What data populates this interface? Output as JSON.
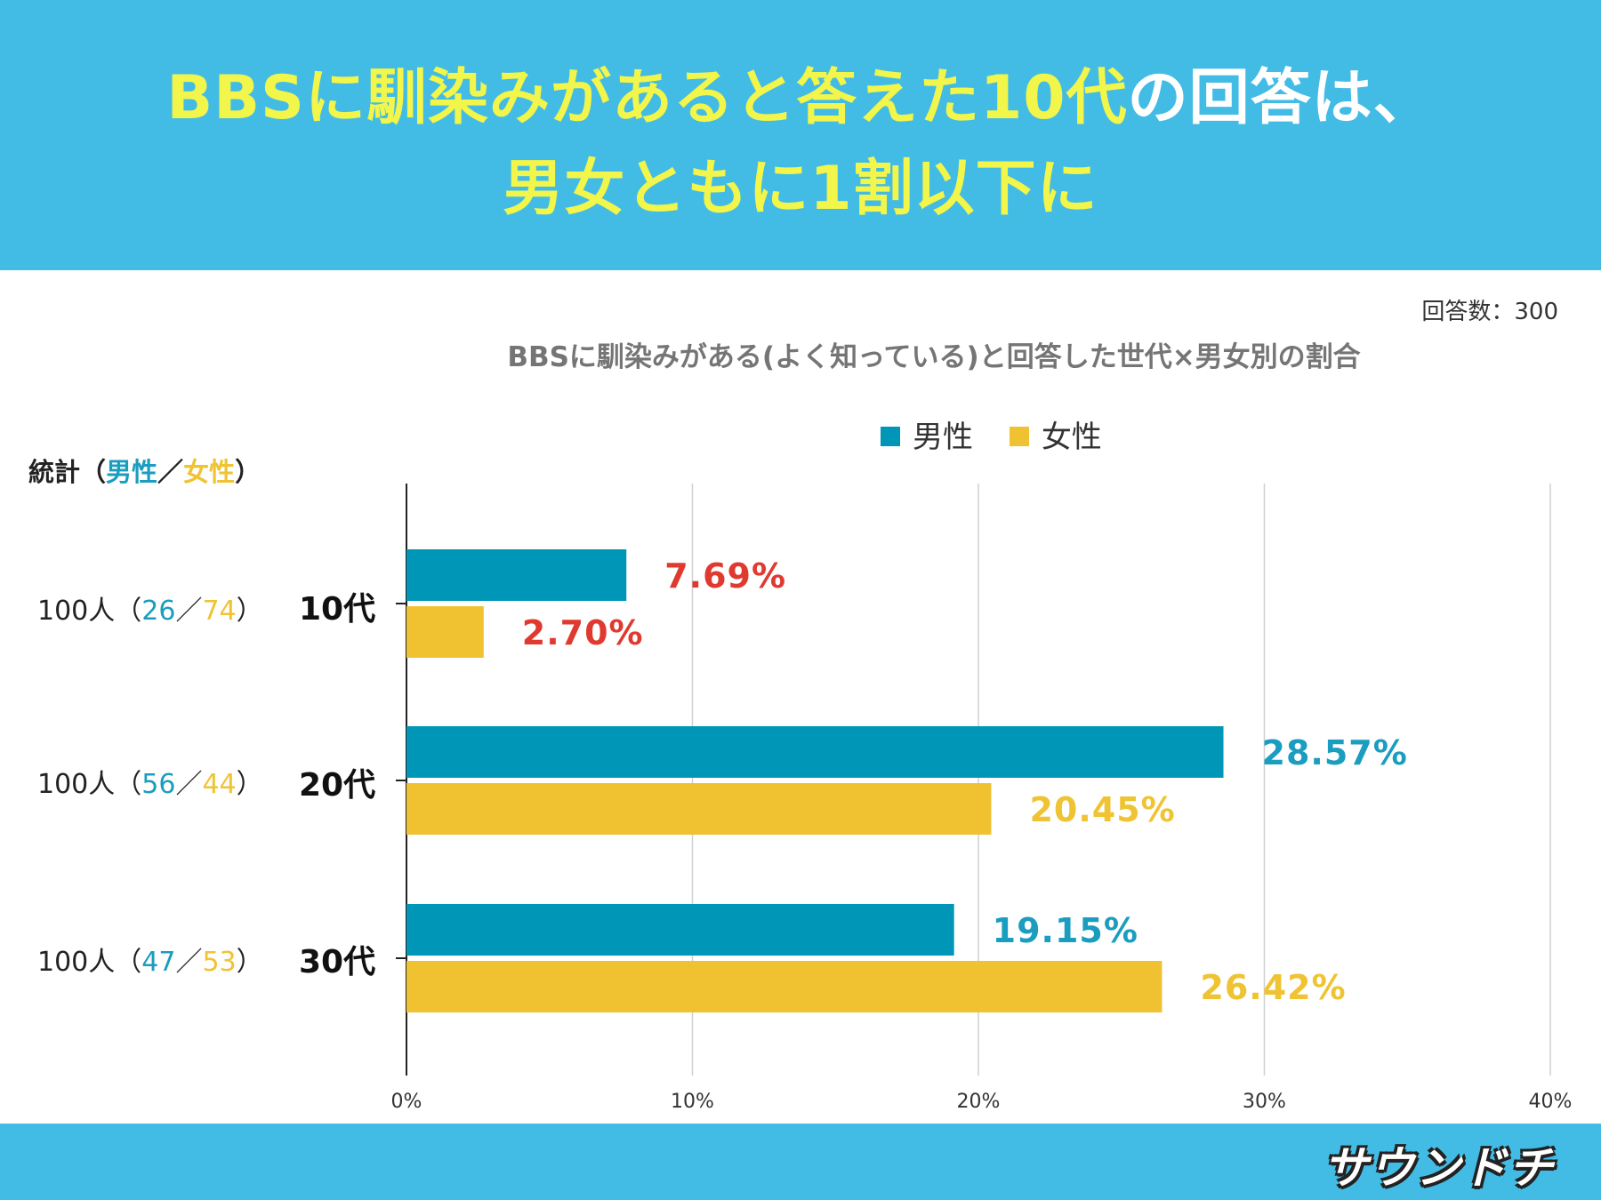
{
  "header": {
    "title_highlight": "BBSに馴染みがあると答えた10代",
    "title_rest": "の回答は、",
    "title_line2": "男女ともに1割以下に"
  },
  "respondents": "回答数：300",
  "stat_header": {
    "prefix": "統計（",
    "male": "男性",
    "sep": "／",
    "female": "女性",
    "suffix": "）"
  },
  "stats": [
    {
      "total": "100人（",
      "male": "26",
      "sep": "／",
      "female": "74",
      "close": "）"
    },
    {
      "total": "100人（",
      "male": "56",
      "sep": "／",
      "female": "44",
      "close": "）"
    },
    {
      "total": "100人（",
      "male": "47",
      "sep": "／",
      "female": "53",
      "close": "）"
    }
  ],
  "colors": {
    "male": "#0096b8",
    "female": "#f0c232",
    "header_bg": "#43bce5",
    "highlight_label": "#e03a30"
  },
  "footer": {
    "logo": "サウンドチ"
  },
  "chart_data": {
    "type": "bar",
    "orientation": "horizontal",
    "title": "BBSに馴染みがある(よく知っている)と回答した世代×男女別の割合",
    "categories": [
      "10代",
      "20代",
      "30代"
    ],
    "series": [
      {
        "name": "男性",
        "values": [
          7.69,
          28.57,
          19.15
        ],
        "labels": [
          "7.69%",
          "28.57%",
          "19.15%"
        ]
      },
      {
        "name": "女性",
        "values": [
          2.7,
          20.45,
          26.42
        ],
        "labels": [
          "2.70%",
          "20.45%",
          "26.42%"
        ]
      }
    ],
    "xlim": [
      0,
      40
    ],
    "xticks": [
      "0%",
      "10%",
      "20%",
      "30%",
      "40%"
    ],
    "grid": true,
    "legend": "top-center"
  }
}
